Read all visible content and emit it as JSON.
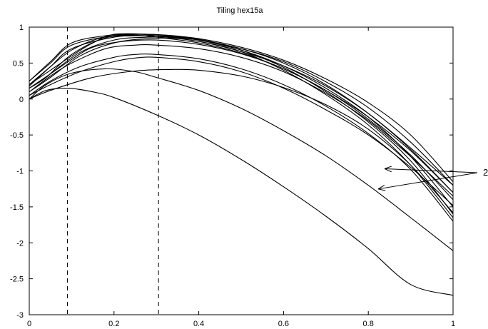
{
  "chart_data": {
    "type": "line",
    "title": "Tiling hex15a",
    "xlabel": "",
    "ylabel": "",
    "xlim": [
      0,
      1
    ],
    "ylim": [
      -3,
      1
    ],
    "x_ticks": [
      0,
      0.2,
      0.4,
      0.6,
      0.8,
      1
    ],
    "x_tick_labels": [
      "0",
      "0.2",
      "0.4",
      "0.6",
      "0.8",
      "1"
    ],
    "y_ticks": [
      -3,
      -2.5,
      -2,
      -1.5,
      -1,
      -0.5,
      0,
      0.5,
      1
    ],
    "y_tick_labels": [
      "-3",
      "-2.5",
      "-2",
      "-1.5",
      "-1",
      "-0.5",
      "0",
      "0.5",
      "1"
    ],
    "grid": false,
    "legend": "none",
    "line_color": "#000000",
    "vertical_dashed_lines": [
      0.09,
      0.305
    ],
    "annotation": {
      "text": "2",
      "arrow_targets": [
        {
          "x": 0.84,
          "y": -0.97
        },
        {
          "x": 0.825,
          "y": -1.25
        }
      ]
    },
    "series": [
      {
        "x": [
          0,
          0.04,
          0.09,
          0.15,
          0.2,
          0.3,
          0.4,
          0.5,
          0.6,
          0.7,
          0.8,
          0.9,
          1
        ],
        "y": [
          0,
          0.12,
          0.15,
          0.1,
          0.02,
          -0.22,
          -0.5,
          -0.84,
          -1.22,
          -1.63,
          -2.08,
          -2.58,
          -2.73
        ]
      },
      {
        "x": [
          0,
          0.04,
          0.1,
          0.18,
          0.25,
          0.3,
          0.4,
          0.5,
          0.6,
          0.7,
          0.8,
          0.9,
          1
        ],
        "y": [
          0,
          0.2,
          0.36,
          0.42,
          0.38,
          0.3,
          0.12,
          -0.13,
          -0.44,
          -0.79,
          -1.2,
          -1.65,
          -2.11
        ]
      },
      {
        "x": [
          0,
          0.05,
          0.15,
          0.25,
          0.33,
          0.4,
          0.5,
          0.6,
          0.7,
          0.8,
          0.9,
          1
        ],
        "y": [
          0,
          0.12,
          0.3,
          0.39,
          0.41,
          0.4,
          0.32,
          0.16,
          -0.08,
          -0.42,
          -0.92,
          -1.58
        ]
      },
      {
        "x": [
          0,
          0.05,
          0.12,
          0.2,
          0.25,
          0.3,
          0.4,
          0.5,
          0.6,
          0.7,
          0.8,
          0.9,
          1
        ],
        "y": [
          0.05,
          0.2,
          0.38,
          0.52,
          0.57,
          0.58,
          0.52,
          0.38,
          0.15,
          -0.15,
          -0.5,
          -0.95,
          -1.48
        ]
      },
      {
        "x": [
          0,
          0.05,
          0.12,
          0.2,
          0.25,
          0.3,
          0.4,
          0.5,
          0.6,
          0.7,
          0.8,
          0.9,
          1
        ],
        "y": [
          0.05,
          0.25,
          0.45,
          0.58,
          0.62,
          0.62,
          0.56,
          0.42,
          0.2,
          -0.1,
          -0.48,
          -0.98,
          -1.7
        ]
      },
      {
        "x": [
          0,
          0.05,
          0.1,
          0.18,
          0.25,
          0.3,
          0.4,
          0.5,
          0.6,
          0.7,
          0.8,
          0.9,
          1
        ],
        "y": [
          0.1,
          0.32,
          0.5,
          0.7,
          0.75,
          0.75,
          0.7,
          0.58,
          0.38,
          0.08,
          -0.3,
          -0.8,
          -1.35
        ]
      },
      {
        "x": [
          0,
          0.05,
          0.1,
          0.15,
          0.22,
          0.3,
          0.4,
          0.5,
          0.6,
          0.7,
          0.8,
          0.9,
          1
        ],
        "y": [
          0.15,
          0.35,
          0.55,
          0.72,
          0.8,
          0.82,
          0.76,
          0.63,
          0.42,
          0.12,
          -0.25,
          -0.72,
          -1.3
        ]
      },
      {
        "x": [
          0,
          0.05,
          0.1,
          0.17,
          0.25,
          0.3,
          0.4,
          0.5,
          0.6,
          0.7,
          0.8,
          0.9,
          1
        ],
        "y": [
          0.2,
          0.45,
          0.68,
          0.85,
          0.88,
          0.86,
          0.78,
          0.64,
          0.42,
          0.12,
          -0.28,
          -0.78,
          -1.4
        ]
      },
      {
        "x": [
          0,
          0.05,
          0.1,
          0.18,
          0.25,
          0.3,
          0.4,
          0.5,
          0.6,
          0.7,
          0.8,
          0.9,
          1
        ],
        "y": [
          0.25,
          0.52,
          0.78,
          0.88,
          0.9,
          0.88,
          0.8,
          0.66,
          0.46,
          0.18,
          -0.2,
          -0.68,
          -1.2
        ]
      },
      {
        "x": [
          0,
          0.04,
          0.1,
          0.18,
          0.26,
          0.32,
          0.4,
          0.5,
          0.6,
          0.7,
          0.8,
          0.9,
          1
        ],
        "y": [
          0.15,
          0.3,
          0.62,
          0.85,
          0.9,
          0.89,
          0.84,
          0.72,
          0.54,
          0.28,
          -0.05,
          -0.5,
          -1.15
        ]
      },
      {
        "x": [
          0,
          0.05,
          0.1,
          0.15,
          0.2,
          0.28,
          0.35,
          0.4,
          0.5,
          0.6,
          0.7,
          0.8,
          0.9,
          1
        ],
        "y": [
          0.2,
          0.4,
          0.6,
          0.78,
          0.9,
          0.9,
          0.87,
          0.83,
          0.7,
          0.52,
          0.24,
          -0.12,
          -0.6,
          -1.2
        ]
      },
      {
        "x": [
          0,
          0.05,
          0.1,
          0.2,
          0.28,
          0.34,
          0.4,
          0.5,
          0.6,
          0.7,
          0.8,
          0.9,
          1
        ],
        "y": [
          0.25,
          0.5,
          0.75,
          0.88,
          0.88,
          0.86,
          0.82,
          0.7,
          0.5,
          0.2,
          -0.2,
          -0.7,
          -1.3
        ]
      },
      {
        "x": [
          0,
          0.05,
          0.1,
          0.2,
          0.28,
          0.34,
          0.4,
          0.5,
          0.6,
          0.7,
          0.8,
          0.9,
          1
        ],
        "y": [
          0.18,
          0.45,
          0.7,
          0.86,
          0.88,
          0.87,
          0.82,
          0.68,
          0.46,
          0.15,
          -0.25,
          -0.8,
          -1.5
        ]
      },
      {
        "x": [
          0,
          0.05,
          0.12,
          0.2,
          0.28,
          0.35,
          0.42,
          0.5,
          0.6,
          0.7,
          0.8,
          0.9,
          1
        ],
        "y": [
          0.15,
          0.35,
          0.65,
          0.82,
          0.86,
          0.85,
          0.8,
          0.68,
          0.44,
          0.1,
          -0.32,
          -0.86,
          -1.6
        ]
      },
      {
        "x": [
          0,
          0.05,
          0.12,
          0.2,
          0.28,
          0.35,
          0.42,
          0.5,
          0.6,
          0.7,
          0.8,
          0.9,
          1
        ],
        "y": [
          0.1,
          0.3,
          0.6,
          0.78,
          0.84,
          0.84,
          0.78,
          0.66,
          0.4,
          0.06,
          -0.36,
          -0.92,
          -1.65
        ]
      }
    ]
  }
}
